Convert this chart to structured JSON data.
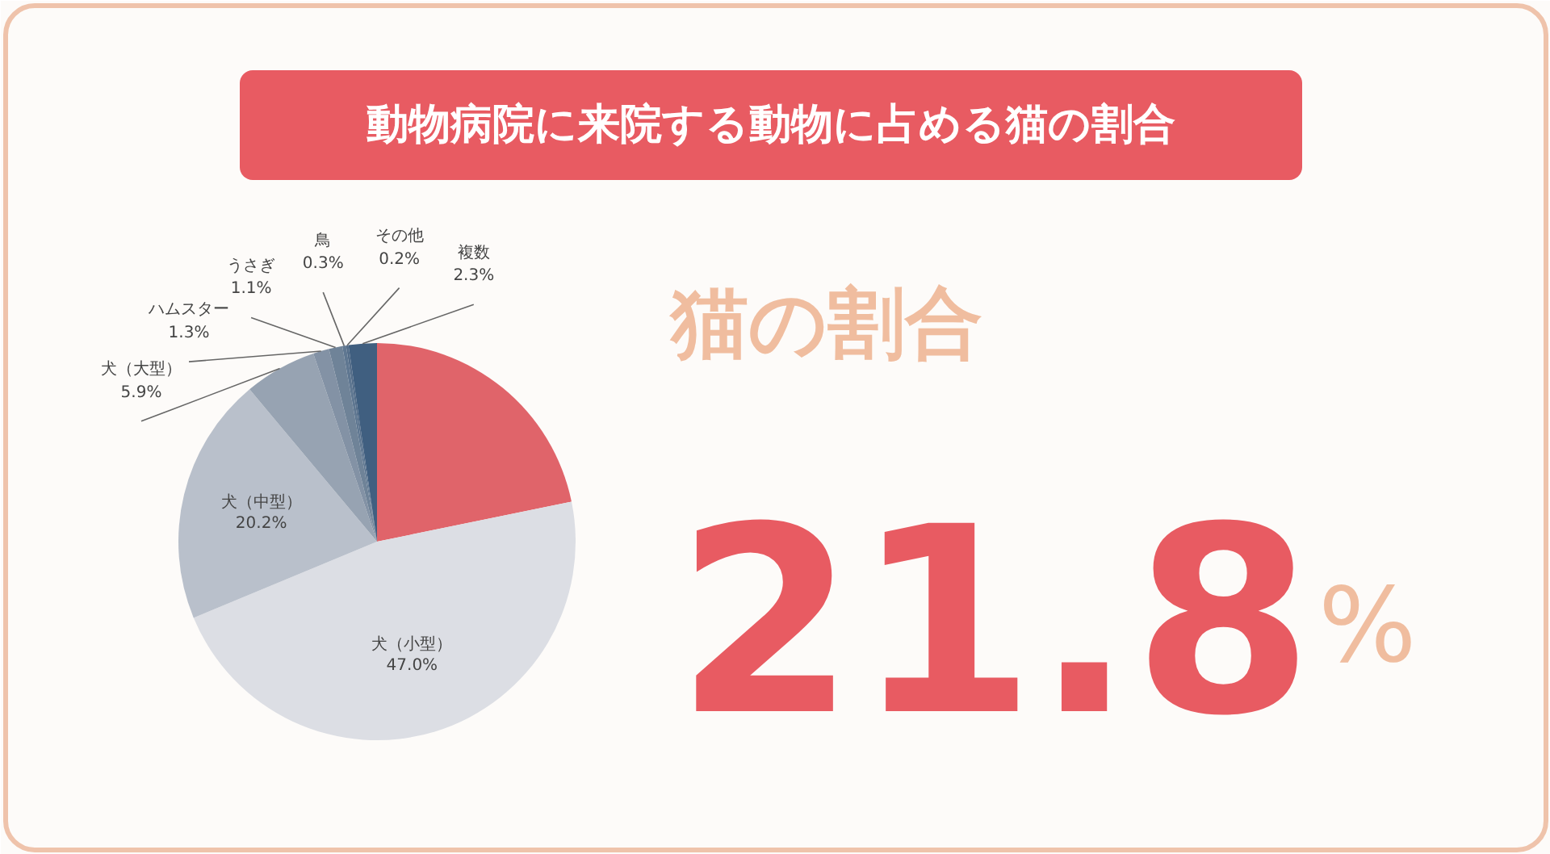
{
  "chart_data": {
    "type": "pie",
    "title": "動物病院に来院する動物に占める猫の割合",
    "categories": [
      null,
      "犬（小型）",
      "犬（中型）",
      "犬（大型）",
      "ハムスター",
      "うさぎ",
      "鳥",
      "その他",
      "複数"
    ],
    "values": [
      21.8,
      47.0,
      20.2,
      5.9,
      1.3,
      1.1,
      0.3,
      0.2,
      2.3
    ],
    "value_labels": [
      null,
      "47.0%",
      "20.2%",
      "5.9%",
      "1.3%",
      "1.1%",
      "0.3%",
      "0.2%",
      "2.3%"
    ],
    "colors": [
      "#e0646a",
      "#dcdee4",
      "#b9c0cb",
      "#97a3b2",
      "#8392a5",
      "#6f8398",
      "#5f7791",
      "#546d89",
      "#405f80"
    ],
    "annotations": [
      "猫の割合",
      "21.8%"
    ]
  }
}
